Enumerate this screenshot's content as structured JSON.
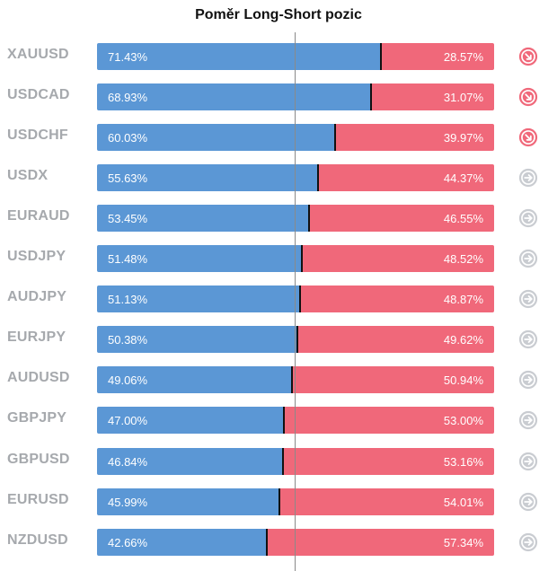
{
  "chart_data": {
    "type": "bar",
    "title": "Poměr Long-Short pozic",
    "categories": [
      "XAUUSD",
      "USDCAD",
      "USDCHF",
      "USDX",
      "EURAUD",
      "USDJPY",
      "AUDJPY",
      "EURJPY",
      "AUDUSD",
      "GBPJPY",
      "GBPUSD",
      "EURUSD",
      "NZDUSD"
    ],
    "series": [
      {
        "values": [
          71.43,
          68.93,
          60.03,
          55.63,
          53.45,
          51.48,
          51.13,
          50.38,
          49.06,
          47.0,
          46.84,
          45.99,
          42.66
        ]
      },
      {
        "values": [
          28.57,
          31.07,
          39.97,
          44.37,
          46.55,
          48.52,
          48.87,
          49.62,
          50.94,
          53.0,
          53.16,
          54.01,
          57.34
        ]
      }
    ],
    "value_labels_long": [
      "71.43%",
      "68.93%",
      "60.03%",
      "55.63%",
      "53.45%",
      "51.48%",
      "51.13%",
      "50.38%",
      "49.06%",
      "47.00%",
      "46.84%",
      "45.99%",
      "42.66%"
    ],
    "value_labels_short": [
      "28.57%",
      "31.07%",
      "39.97%",
      "44.37%",
      "46.55%",
      "48.52%",
      "48.87%",
      "49.62%",
      "50.94%",
      "53.00%",
      "53.16%",
      "54.01%",
      "57.34%"
    ],
    "signals": [
      "down-right",
      "down-right",
      "down-right",
      "right",
      "right",
      "right",
      "right",
      "right",
      "right",
      "right",
      "right",
      "right",
      "right"
    ],
    "colors": {
      "long": "#5b97d5",
      "short": "#f0687a",
      "signal_strong": "#f0687a",
      "signal_neutral": "#c9ccd1",
      "label": "#a6a9ad"
    },
    "stacked": true,
    "orientation": "horizontal",
    "xlim": [
      0,
      100
    ],
    "reference_line": 50,
    "grid": false
  }
}
